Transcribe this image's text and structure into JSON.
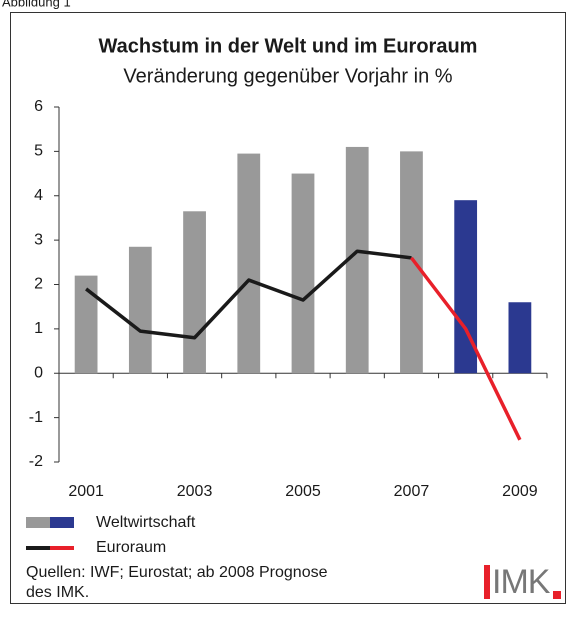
{
  "caption": "Abbildung 1",
  "chart_data": {
    "type": "bar-line",
    "title": "Wachstum in der Welt und im Euroraum",
    "subtitle": "Veränderung gegenüber Vorjahr in %",
    "categories": [
      "2001",
      null,
      "2003",
      null,
      "2005",
      null,
      "2007",
      null,
      "2009"
    ],
    "series": [
      {
        "name": "Weltwirtschaft",
        "type": "bar",
        "color": "#999999",
        "colors": [
          "#999999",
          "#999999",
          "#999999",
          "#999999",
          "#999999",
          "#999999",
          "#999999",
          "#2b3990",
          "#2b3990"
        ],
        "values": [
          2.2,
          2.85,
          3.65,
          4.95,
          4.5,
          5.1,
          5.0,
          3.9,
          1.6
        ]
      },
      {
        "name": "Euroraum",
        "type": "line",
        "color": "#1a1a1a",
        "colors": [
          "#1a1a1a",
          "#1a1a1a",
          "#1a1a1a",
          "#1a1a1a",
          "#1a1a1a",
          "#1a1a1a",
          "#1a1a1a",
          "#e8202a",
          "#e8202a"
        ],
        "values": [
          1.9,
          0.95,
          0.8,
          2.1,
          1.65,
          2.75,
          2.6,
          1.0,
          -1.5
        ]
      }
    ],
    "ylim": [
      -2,
      6
    ],
    "yticks": [
      -2,
      -1,
      0,
      1,
      2,
      3,
      4,
      5,
      6
    ]
  },
  "source": [
    "Quellen: IWF; Eurostat; ab 2008 Prognose",
    "des IMK."
  ],
  "logo": "IMK"
}
